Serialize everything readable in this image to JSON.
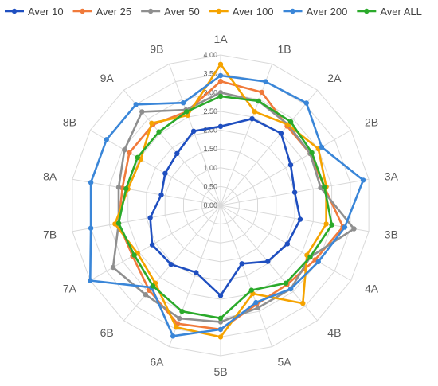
{
  "chart_data": {
    "type": "radar",
    "categories": [
      "1A",
      "1B",
      "2A",
      "2B",
      "3A",
      "3B",
      "4A",
      "4B",
      "5A",
      "5B",
      "6A",
      "6B",
      "7A",
      "7B",
      "8A",
      "8B",
      "9A",
      "9B"
    ],
    "rticks": [
      "0.00",
      "0.50",
      "1.00",
      "1.50",
      "2.00",
      "2.50",
      "3.00",
      "3.50",
      "4.00"
    ],
    "rmax": 4.0,
    "legend_position": "top",
    "series": [
      {
        "name": "Aver 10",
        "color": "#1F4FC0",
        "values": [
          2.1,
          2.45,
          2.5,
          2.15,
          2.0,
          2.15,
          2.05,
          1.95,
          1.65,
          2.4,
          1.9,
          2.05,
          2.1,
          1.9,
          1.6,
          1.7,
          1.8,
          2.1
        ]
      },
      {
        "name": "Aver 25",
        "color": "#F07A3B",
        "values": [
          3.3,
          3.2,
          2.75,
          2.75,
          2.8,
          3.3,
          2.9,
          2.75,
          2.8,
          3.3,
          3.35,
          2.95,
          2.7,
          2.75,
          2.65,
          2.8,
          2.8,
          2.65
        ]
      },
      {
        "name": "Aver 50",
        "color": "#8F8F8F",
        "values": [
          3.0,
          2.95,
          2.8,
          2.75,
          2.7,
          3.6,
          2.75,
          2.9,
          2.9,
          3.1,
          3.2,
          3.1,
          3.3,
          2.75,
          2.75,
          2.95,
          3.25,
          2.7
        ]
      },
      {
        "name": "Aver 100",
        "color": "#F5A300",
        "values": [
          3.75,
          2.65,
          2.8,
          3.0,
          2.85,
          2.85,
          2.65,
          3.4,
          2.5,
          3.5,
          3.45,
          2.7,
          2.55,
          2.85,
          2.5,
          2.45,
          2.85,
          2.55
        ]
      },
      {
        "name": "Aver 200",
        "color": "#3A86D8",
        "values": [
          3.45,
          3.5,
          3.55,
          3.1,
          3.85,
          3.35,
          3.0,
          2.9,
          2.75,
          3.3,
          3.7,
          2.85,
          4.0,
          3.5,
          3.5,
          3.5,
          3.5,
          2.9
        ]
      },
      {
        "name": "Aver ALL",
        "color": "#2BAA2B",
        "values": [
          2.9,
          2.95,
          2.9,
          2.8,
          2.8,
          3.0,
          2.75,
          2.7,
          2.4,
          3.0,
          3.0,
          2.8,
          2.65,
          2.75,
          2.55,
          2.55,
          2.55,
          2.65
        ]
      }
    ]
  }
}
